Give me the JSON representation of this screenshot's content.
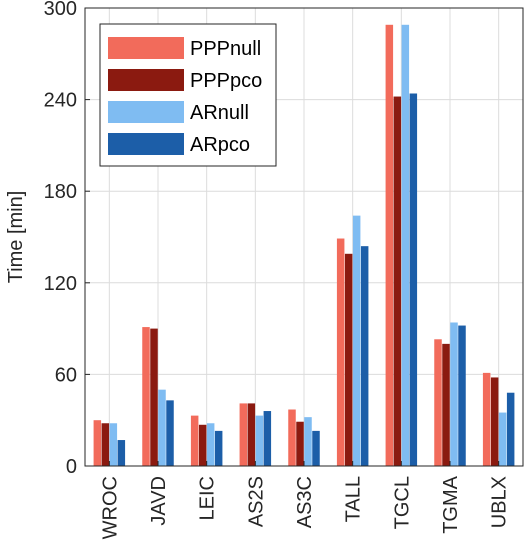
{
  "chart_data": {
    "type": "bar",
    "title": "",
    "xlabel": "",
    "ylabel": "Time [min]",
    "ylim": [
      0,
      300
    ],
    "yticks": [
      0,
      60,
      120,
      180,
      240,
      300
    ],
    "grid": true,
    "legend_position": "top-left",
    "categories": [
      "WROC",
      "JAVD",
      "LEIC",
      "AS2S",
      "AS3C",
      "TALL",
      "TGCL",
      "TGMA",
      "UBLX"
    ],
    "series": [
      {
        "name": "PPPnull",
        "color": "#f26b5b",
        "values": [
          30,
          91,
          33,
          41,
          37,
          149,
          289,
          83,
          61
        ]
      },
      {
        "name": "PPPpco",
        "color": "#8b1a10",
        "values": [
          28,
          90,
          27,
          41,
          29,
          139,
          242,
          80,
          58
        ]
      },
      {
        "name": "ARnull",
        "color": "#7fbcf2",
        "values": [
          28,
          50,
          28,
          33,
          32,
          164,
          289,
          94,
          35
        ]
      },
      {
        "name": "ARpco",
        "color": "#1c5ea8",
        "values": [
          17,
          43,
          23,
          36,
          23,
          144,
          244,
          92,
          48
        ]
      }
    ]
  }
}
